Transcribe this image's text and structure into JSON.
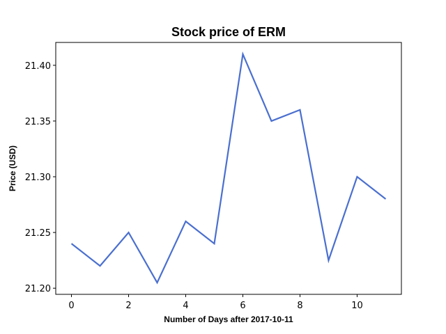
{
  "chart_data": {
    "type": "line",
    "title": "Stock price of ERM",
    "xlabel": "Number of Days after 2017-10-11",
    "ylabel": "Price (USD)",
    "x": [
      0,
      1,
      2,
      3,
      4,
      5,
      6,
      7,
      8,
      9,
      10,
      11
    ],
    "series": [
      {
        "values": [
          21.24,
          21.22,
          21.25,
          21.205,
          21.26,
          21.24,
          21.41,
          21.35,
          21.36,
          21.225,
          21.3,
          21.28
        ],
        "color": "#4a6fcf"
      }
    ],
    "xlim": [
      -0.55,
      11.55
    ],
    "ylim": [
      21.1945,
      21.4205
    ],
    "xticks": [
      0,
      2,
      4,
      6,
      8,
      10
    ],
    "yticks": [
      21.2,
      21.25,
      21.3,
      21.35,
      21.4
    ],
    "ytick_labels": [
      "21.20",
      "21.25",
      "21.30",
      "21.35",
      "21.40"
    ],
    "grid": false,
    "legend": "none"
  }
}
